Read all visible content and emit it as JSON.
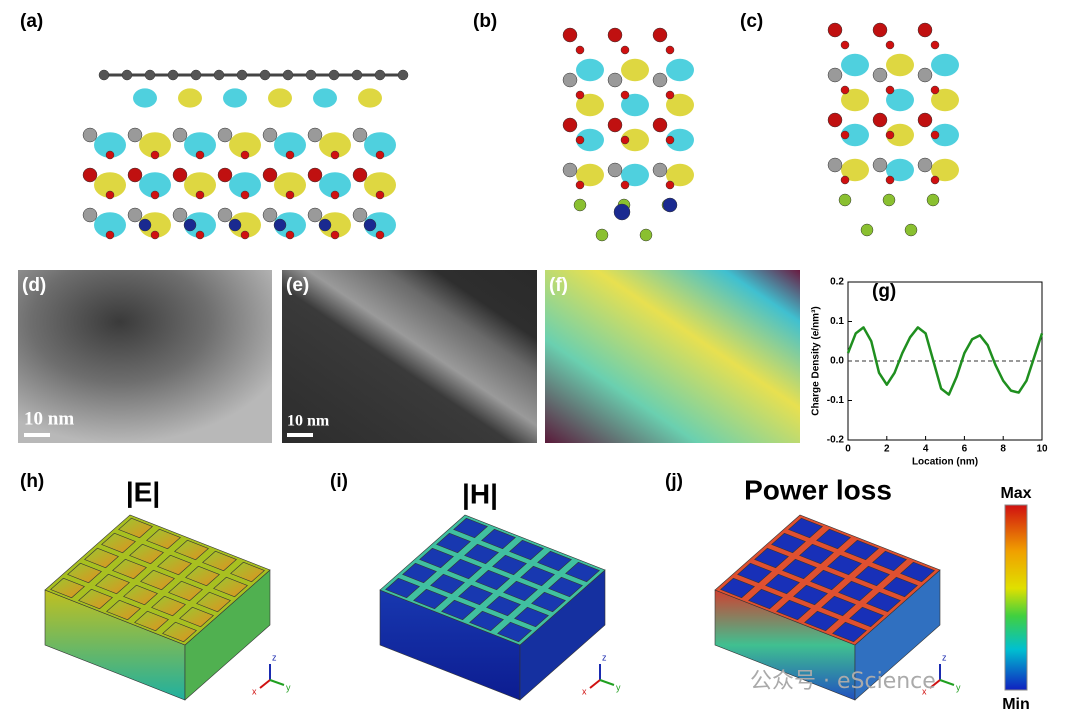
{
  "panel_labels": [
    "(a)",
    "(b)",
    "(c)",
    "(d)",
    "(e)",
    "(f)",
    "(g)",
    "(h)",
    "(i)",
    "(j)"
  ],
  "scale_bars": [
    "10 nm",
    "10 nm"
  ],
  "field_titles": [
    "|E|",
    "|H|",
    "Power loss"
  ],
  "colorbar": {
    "max": "Max",
    "min": "Min"
  },
  "axis_triad": {
    "z": "z",
    "x": "x",
    "y": "y"
  },
  "watermark": "公众号 · eScience",
  "chart_data": {
    "type": "line",
    "xlabel": "Location (nm)",
    "ylabel": "Charge Density (e/nm³)",
    "x": [
      0,
      0.4,
      0.8,
      1.2,
      1.6,
      2.0,
      2.4,
      2.8,
      3.2,
      3.6,
      4.0,
      4.4,
      4.8,
      5.2,
      5.6,
      6.0,
      6.4,
      6.8,
      7.2,
      7.6,
      8.0,
      8.4,
      8.8,
      9.2,
      9.6,
      10
    ],
    "series": [
      {
        "color": "#1f8f1f",
        "values": [
          0.02,
          0.07,
          0.085,
          0.05,
          -0.03,
          -0.06,
          -0.03,
          0.02,
          0.06,
          0.085,
          0.07,
          0.0,
          -0.07,
          -0.085,
          -0.04,
          0.02,
          0.055,
          0.065,
          0.04,
          -0.01,
          -0.05,
          -0.075,
          -0.08,
          -0.05,
          0.01,
          0.07
        ]
      }
    ],
    "xlim": [
      0,
      10
    ],
    "ylim": [
      -0.2,
      0.2
    ],
    "xticks": [
      0,
      2,
      4,
      6,
      8,
      10
    ],
    "yticks": [
      -0.2,
      -0.1,
      {
        "value": 0,
        "label": "0.0"
      },
      0.1,
      0.2
    ]
  }
}
